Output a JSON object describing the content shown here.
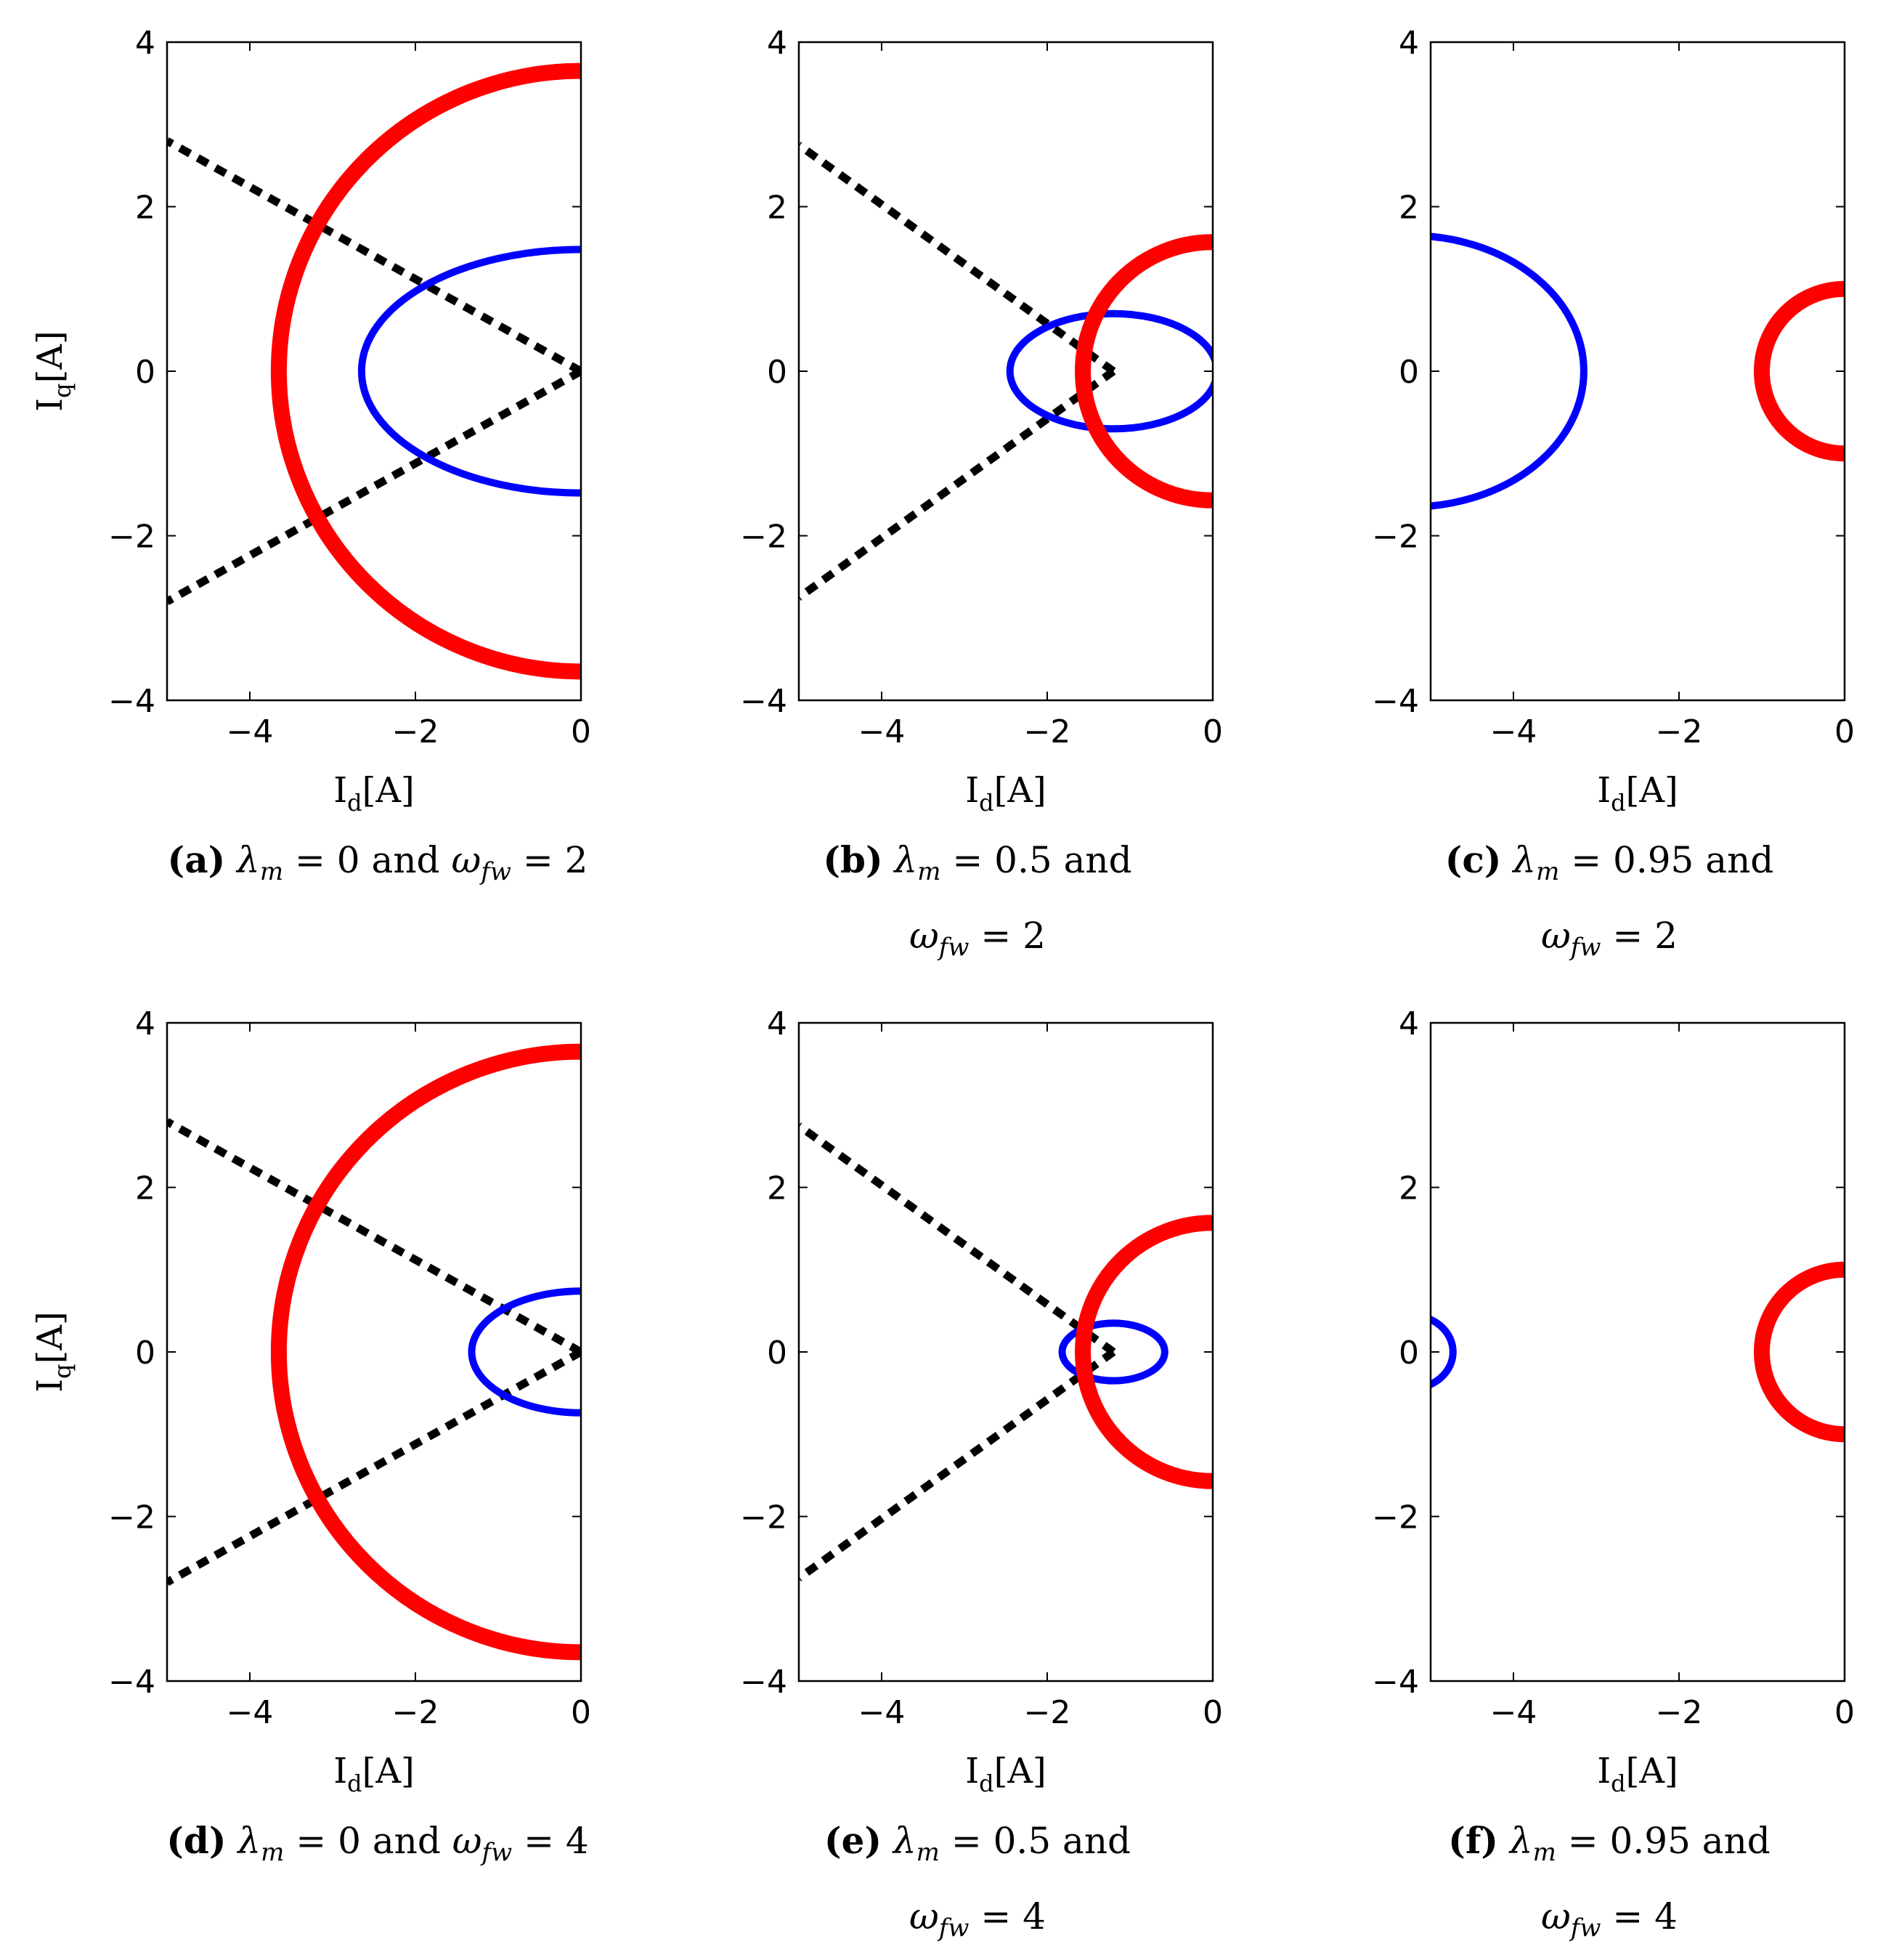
{
  "chart_data": [
    {
      "id": "a",
      "type": "line",
      "caption": {
        "letter": "(a)",
        "lambda_value": "0",
        "omega_value": "2"
      },
      "xlabel": "I",
      "xlabel_sub": "d",
      "xlabel_unit": "[A]",
      "ylabel": "I",
      "ylabel_sub": "q",
      "ylabel_unit": "[A]",
      "xlim": [
        -5,
        0
      ],
      "ylim": [
        -4,
        4
      ],
      "xticks": [
        -4,
        -2,
        0
      ],
      "xtick_labels": [
        "−4",
        "−2",
        "0"
      ],
      "yticks": [
        -4,
        -2,
        0,
        2,
        4
      ],
      "ytick_labels": [
        "−4",
        "−2",
        "0",
        "2",
        "4"
      ],
      "series": [
        {
          "name": "red-semicircle",
          "shape": "arc",
          "center": [
            0,
            0
          ],
          "rx": 3.65,
          "ry": 3.65,
          "color": "#ff0000"
        },
        {
          "name": "blue-ellipse",
          "shape": "arc",
          "center": [
            0,
            0
          ],
          "rx": 2.65,
          "ry": 1.48,
          "color": "#0000ff"
        },
        {
          "name": "black-dotted-lines",
          "shape": "lines",
          "apex": [
            0,
            0
          ],
          "ends": [
            [
              -5,
              2.8
            ],
            [
              -5,
              -2.8
            ]
          ],
          "color": "#000000"
        }
      ]
    },
    {
      "id": "b",
      "type": "line",
      "caption": {
        "letter": "(b)",
        "lambda_value": "0.5",
        "omega_value": "2"
      },
      "xlabel": "I",
      "xlabel_sub": "d",
      "xlabel_unit": "[A]",
      "ylabel": "",
      "ylabel_sub": "",
      "ylabel_unit": "",
      "xlim": [
        -5,
        0
      ],
      "ylim": [
        -4,
        4
      ],
      "xticks": [
        -4,
        -2,
        0
      ],
      "xtick_labels": [
        "−4",
        "−2",
        "0"
      ],
      "yticks": [
        -4,
        -2,
        0,
        2,
        4
      ],
      "ytick_labels": [
        "−4",
        "−2",
        "0",
        "2",
        "4"
      ],
      "series": [
        {
          "name": "red-semicircle",
          "shape": "arc",
          "center": [
            0,
            0
          ],
          "rx": 1.57,
          "ry": 1.57,
          "color": "#ff0000"
        },
        {
          "name": "blue-ellipse",
          "shape": "ellipse",
          "center": [
            -1.2,
            0
          ],
          "rx": 1.25,
          "ry": 0.7,
          "color": "#0000ff"
        },
        {
          "name": "black-dotted-lines",
          "shape": "lines",
          "apex": [
            -1.2,
            0
          ],
          "ends": [
            [
              -5,
              2.75
            ],
            [
              -5,
              -2.75
            ]
          ],
          "color": "#000000"
        }
      ]
    },
    {
      "id": "c",
      "type": "line",
      "caption": {
        "letter": "(c)",
        "lambda_value": "0.95",
        "omega_value": "2"
      },
      "xlabel": "I",
      "xlabel_sub": "d",
      "xlabel_unit": "[A]",
      "ylabel": "",
      "ylabel_sub": "",
      "ylabel_unit": "",
      "xlim": [
        -5,
        0
      ],
      "ylim": [
        -4,
        4
      ],
      "xticks": [
        -4,
        -2,
        0
      ],
      "xtick_labels": [
        "−4",
        "−2",
        "0"
      ],
      "yticks": [
        -4,
        -2,
        0,
        2,
        4
      ],
      "ytick_labels": [
        "−4",
        "−2",
        "0",
        "2",
        "4"
      ],
      "series": [
        {
          "name": "red-semicircle",
          "shape": "arc",
          "center": [
            0,
            0
          ],
          "rx": 1.0,
          "ry": 1.0,
          "color": "#ff0000"
        },
        {
          "name": "blue-ellipse",
          "shape": "ellipse",
          "center": [
            -5.25,
            0
          ],
          "rx": 2.1,
          "ry": 1.65,
          "color": "#0000ff"
        }
      ]
    },
    {
      "id": "d",
      "type": "line",
      "caption": {
        "letter": "(d)",
        "lambda_value": "0",
        "omega_value": "4"
      },
      "xlabel": "I",
      "xlabel_sub": "d",
      "xlabel_unit": "[A]",
      "ylabel": "I",
      "ylabel_sub": "q",
      "ylabel_unit": "[A]",
      "xlim": [
        -5,
        0
      ],
      "ylim": [
        -4,
        4
      ],
      "xticks": [
        -4,
        -2,
        0
      ],
      "xtick_labels": [
        "−4",
        "−2",
        "0"
      ],
      "yticks": [
        -4,
        -2,
        0,
        2,
        4
      ],
      "ytick_labels": [
        "−4",
        "−2",
        "0",
        "2",
        "4"
      ],
      "series": [
        {
          "name": "red-semicircle",
          "shape": "arc",
          "center": [
            0,
            0
          ],
          "rx": 3.65,
          "ry": 3.65,
          "color": "#ff0000"
        },
        {
          "name": "blue-ellipse",
          "shape": "arc",
          "center": [
            0,
            0
          ],
          "rx": 1.32,
          "ry": 0.74,
          "color": "#0000ff"
        },
        {
          "name": "black-dotted-lines",
          "shape": "lines",
          "apex": [
            0,
            0
          ],
          "ends": [
            [
              -5,
              2.8
            ],
            [
              -5,
              -2.8
            ]
          ],
          "color": "#000000"
        }
      ]
    },
    {
      "id": "e",
      "type": "line",
      "caption": {
        "letter": "(e)",
        "lambda_value": "0.5",
        "omega_value": "4"
      },
      "xlabel": "I",
      "xlabel_sub": "d",
      "xlabel_unit": "[A]",
      "ylabel": "",
      "ylabel_sub": "",
      "ylabel_unit": "",
      "xlim": [
        -5,
        0
      ],
      "ylim": [
        -4,
        4
      ],
      "xticks": [
        -4,
        -2,
        0
      ],
      "xtick_labels": [
        "−4",
        "−2",
        "0"
      ],
      "yticks": [
        -4,
        -2,
        0,
        2,
        4
      ],
      "ytick_labels": [
        "−4",
        "−2",
        "0",
        "2",
        "4"
      ],
      "series": [
        {
          "name": "red-semicircle",
          "shape": "arc",
          "center": [
            0,
            0
          ],
          "rx": 1.57,
          "ry": 1.57,
          "color": "#ff0000"
        },
        {
          "name": "blue-ellipse",
          "shape": "ellipse",
          "center": [
            -1.2,
            0
          ],
          "rx": 0.62,
          "ry": 0.35,
          "color": "#0000ff"
        },
        {
          "name": "black-dotted-lines",
          "shape": "lines",
          "apex": [
            -1.2,
            0
          ],
          "ends": [
            [
              -5,
              2.75
            ],
            [
              -5,
              -2.75
            ]
          ],
          "color": "#000000"
        }
      ]
    },
    {
      "id": "f",
      "type": "line",
      "caption": {
        "letter": "(f)",
        "lambda_value": "0.95",
        "omega_value": "4"
      },
      "xlabel": "I",
      "xlabel_sub": "d",
      "xlabel_unit": "[A]",
      "ylabel": "",
      "ylabel_sub": "",
      "ylabel_unit": "",
      "xlim": [
        -5,
        0
      ],
      "ylim": [
        -4,
        4
      ],
      "xticks": [
        -4,
        -2,
        0
      ],
      "xtick_labels": [
        "−4",
        "−2",
        "0"
      ],
      "yticks": [
        -4,
        -2,
        0,
        2,
        4
      ],
      "ytick_labels": [
        "−4",
        "−2",
        "0",
        "2",
        "4"
      ],
      "series": [
        {
          "name": "red-semicircle",
          "shape": "arc",
          "center": [
            0,
            0
          ],
          "rx": 1.0,
          "ry": 1.0,
          "color": "#ff0000"
        },
        {
          "name": "blue-ellipse",
          "shape": "ellipse",
          "center": [
            -5.25,
            0
          ],
          "rx": 0.52,
          "ry": 0.45,
          "color": "#0000ff"
        }
      ]
    }
  ],
  "captions": {
    "a": {
      "letter": "(a)",
      "lambda_text": "= 0",
      "and": "and",
      "omega_text": "= 2"
    },
    "b": {
      "letter": "(b)",
      "lambda_text": "= 0.5",
      "and": "and",
      "omega_text": "=  2"
    },
    "c": {
      "letter": "(c)",
      "lambda_text": "= 0.95",
      "and": "and",
      "omega_text": "=  2"
    },
    "d": {
      "letter": "(d)",
      "lambda_text": "= 0",
      "and": "and",
      "omega_text": "= 4"
    },
    "e": {
      "letter": "(e)",
      "lambda_text": "= 0.5",
      "and": "and",
      "omega_text": "= 4"
    },
    "f": {
      "letter": "(f)",
      "lambda_text": "= 0.95",
      "and": "and",
      "omega_text": "=  4"
    }
  },
  "symbols": {
    "lambda": "λ",
    "lambda_sub": "m",
    "omega": "ω",
    "omega_sub": "fw"
  }
}
